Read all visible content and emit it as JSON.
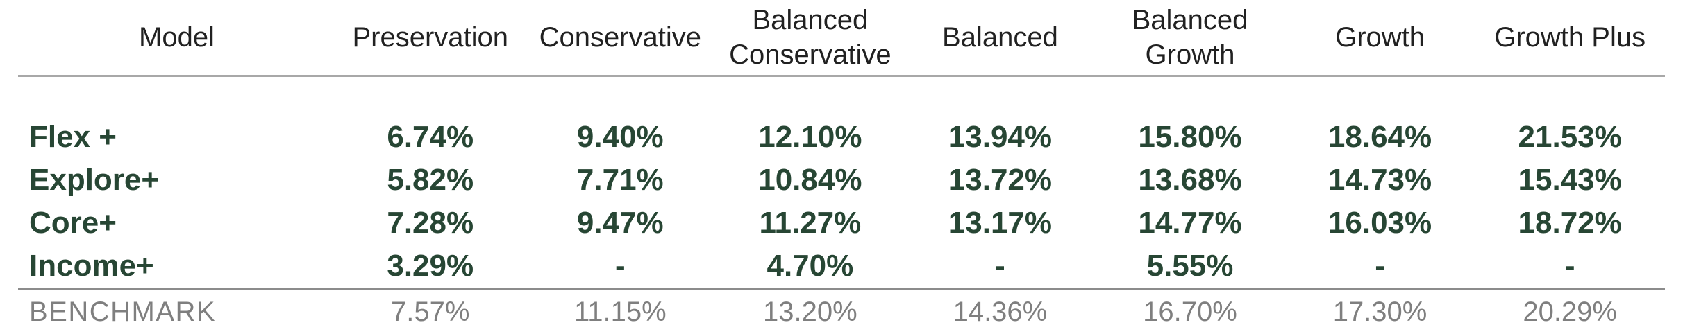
{
  "colors": {
    "row_text_green": "#274634",
    "header_text": "#212121",
    "benchmark_text": "#7f7f7f",
    "header_rule": "#a8a8a8",
    "benchmark_rule": "#8c8c8c",
    "background": "#ffffff"
  },
  "table": {
    "headers": [
      "Model",
      "Preservation",
      "Conservative",
      "Balanced Conservative",
      "Balanced",
      "Balanced Growth",
      "Growth",
      "Growth Plus"
    ],
    "rows": [
      {
        "label": "Flex +",
        "values": [
          "6.74%",
          "9.40%",
          "12.10%",
          "13.94%",
          "15.80%",
          "18.64%",
          "21.53%"
        ]
      },
      {
        "label": "Explore+",
        "values": [
          "5.82%",
          "7.71%",
          "10.84%",
          "13.72%",
          "13.68%",
          "14.73%",
          "15.43%"
        ]
      },
      {
        "label": "Core+",
        "values": [
          "7.28%",
          "9.47%",
          "11.27%",
          "13.17%",
          "14.77%",
          "16.03%",
          "18.72%"
        ]
      },
      {
        "label": "Income+",
        "values": [
          "3.29%",
          "-",
          "4.70%",
          "-",
          "5.55%",
          "-",
          "-"
        ]
      }
    ],
    "benchmark": {
      "label": "BENCHMARK",
      "values": [
        "7.57%",
        "11.15%",
        "13.20%",
        "14.36%",
        "16.70%",
        "17.30%",
        "20.29%"
      ]
    }
  },
  "chart_data": {
    "type": "table",
    "columns": [
      "Model",
      "Preservation",
      "Conservative",
      "Balanced Conservative",
      "Balanced",
      "Balanced Growth",
      "Growth",
      "Growth Plus"
    ],
    "rows": [
      [
        "Flex +",
        "6.74%",
        "9.40%",
        "12.10%",
        "13.94%",
        "15.80%",
        "18.64%",
        "21.53%"
      ],
      [
        "Explore+",
        "5.82%",
        "7.71%",
        "10.84%",
        "13.72%",
        "13.68%",
        "14.73%",
        "15.43%"
      ],
      [
        "Core+",
        "7.28%",
        "9.47%",
        "11.27%",
        "13.17%",
        "14.77%",
        "16.03%",
        "18.72%"
      ],
      [
        "Income+",
        "3.29%",
        "-",
        "4.70%",
        "-",
        "5.55%",
        "-",
        "-"
      ],
      [
        "BENCHMARK",
        "7.57%",
        "11.15%",
        "13.20%",
        "14.36%",
        "16.70%",
        "17.30%",
        "20.29%"
      ]
    ],
    "notes": "Model portfolio returns table; model rows in bold dark green, benchmark row in gray"
  }
}
